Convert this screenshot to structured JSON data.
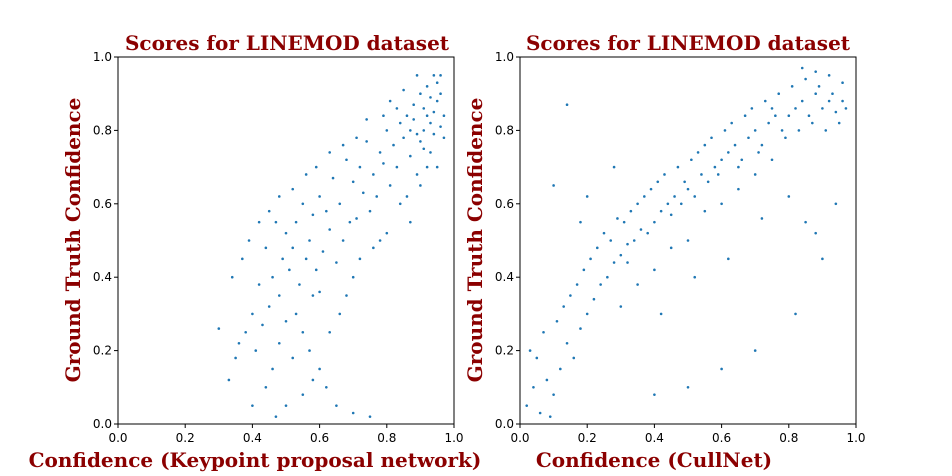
{
  "colors": {
    "point": "#1f77b4",
    "label": "#8b0000"
  },
  "chart_data": [
    {
      "type": "scatter",
      "title": "Scores for LINEMOD dataset",
      "xlabel": "Confidence (Keypoint proposal network)",
      "ylabel": "Ground Truth Confidence",
      "xlim": [
        0.0,
        1.0
      ],
      "ylim": [
        0.0,
        1.0
      ],
      "xticks": [
        "0.0",
        "0.2",
        "0.4",
        "0.6",
        "0.8",
        "1.0"
      ],
      "yticks": [
        "0.0",
        "0.2",
        "0.4",
        "0.6",
        "0.8",
        "1.0"
      ],
      "grid": false,
      "points": [
        [
          0.88,
          0.83
        ],
        [
          0.91,
          0.86
        ],
        [
          0.93,
          0.82
        ],
        [
          0.95,
          0.88
        ],
        [
          0.87,
          0.8
        ],
        [
          0.9,
          0.9
        ],
        [
          0.94,
          0.85
        ],
        [
          0.89,
          0.79
        ],
        [
          0.92,
          0.92
        ],
        [
          0.86,
          0.84
        ],
        [
          0.96,
          0.81
        ],
        [
          0.85,
          0.78
        ],
        [
          0.91,
          0.75
        ],
        [
          0.93,
          0.89
        ],
        [
          0.88,
          0.87
        ],
        [
          0.95,
          0.93
        ],
        [
          0.84,
          0.82
        ],
        [
          0.9,
          0.77
        ],
        [
          0.92,
          0.84
        ],
        [
          0.94,
          0.79
        ],
        [
          0.82,
          0.76
        ],
        [
          0.87,
          0.73
        ],
        [
          0.8,
          0.8
        ],
        [
          0.83,
          0.86
        ],
        [
          0.79,
          0.71
        ],
        [
          0.89,
          0.68
        ],
        [
          0.93,
          0.74
        ],
        [
          0.96,
          0.9
        ],
        [
          0.85,
          0.91
        ],
        [
          0.91,
          0.8
        ],
        [
          0.78,
          0.74
        ],
        [
          0.76,
          0.68
        ],
        [
          0.81,
          0.65
        ],
        [
          0.74,
          0.77
        ],
        [
          0.72,
          0.7
        ],
        [
          0.77,
          0.62
        ],
        [
          0.7,
          0.66
        ],
        [
          0.75,
          0.58
        ],
        [
          0.68,
          0.72
        ],
        [
          0.73,
          0.63
        ],
        [
          0.66,
          0.6
        ],
        [
          0.64,
          0.67
        ],
        [
          0.69,
          0.55
        ],
        [
          0.62,
          0.58
        ],
        [
          0.67,
          0.5
        ],
        [
          0.6,
          0.62
        ],
        [
          0.63,
          0.53
        ],
        [
          0.58,
          0.57
        ],
        [
          0.61,
          0.47
        ],
        [
          0.65,
          0.44
        ],
        [
          0.57,
          0.5
        ],
        [
          0.55,
          0.6
        ],
        [
          0.59,
          0.42
        ],
        [
          0.53,
          0.55
        ],
        [
          0.56,
          0.45
        ],
        [
          0.52,
          0.48
        ],
        [
          0.54,
          0.38
        ],
        [
          0.5,
          0.52
        ],
        [
          0.58,
          0.35
        ],
        [
          0.51,
          0.42
        ],
        [
          0.49,
          0.45
        ],
        [
          0.47,
          0.55
        ],
        [
          0.53,
          0.3
        ],
        [
          0.48,
          0.35
        ],
        [
          0.46,
          0.4
        ],
        [
          0.55,
          0.25
        ],
        [
          0.44,
          0.48
        ],
        [
          0.5,
          0.28
        ],
        [
          0.45,
          0.32
        ],
        [
          0.57,
          0.2
        ],
        [
          0.42,
          0.38
        ],
        [
          0.6,
          0.15
        ],
        [
          0.48,
          0.22
        ],
        [
          0.43,
          0.27
        ],
        [
          0.52,
          0.18
        ],
        [
          0.4,
          0.3
        ],
        [
          0.62,
          0.1
        ],
        [
          0.46,
          0.15
        ],
        [
          0.38,
          0.25
        ],
        [
          0.55,
          0.08
        ],
        [
          0.41,
          0.2
        ],
        [
          0.65,
          0.05
        ],
        [
          0.36,
          0.22
        ],
        [
          0.58,
          0.12
        ],
        [
          0.44,
          0.1
        ],
        [
          0.7,
          0.03
        ],
        [
          0.5,
          0.05
        ],
        [
          0.35,
          0.18
        ],
        [
          0.47,
          0.02
        ],
        [
          0.75,
          0.02
        ],
        [
          0.3,
          0.26
        ],
        [
          0.33,
          0.12
        ],
        [
          0.4,
          0.05
        ],
        [
          0.63,
          0.25
        ],
        [
          0.68,
          0.35
        ],
        [
          0.72,
          0.45
        ],
        [
          0.8,
          0.52
        ],
        [
          0.84,
          0.6
        ],
        [
          0.9,
          0.65
        ],
        [
          0.95,
          0.7
        ],
        [
          0.87,
          0.55
        ],
        [
          0.78,
          0.5
        ],
        [
          0.7,
          0.4
        ],
        [
          0.66,
          0.3
        ],
        [
          0.6,
          0.36
        ],
        [
          0.71,
          0.56
        ],
        [
          0.76,
          0.48
        ],
        [
          0.83,
          0.7
        ],
        [
          0.86,
          0.62
        ],
        [
          0.92,
          0.7
        ],
        [
          0.81,
          0.88
        ],
        [
          0.79,
          0.84
        ],
        [
          0.74,
          0.83
        ],
        [
          0.71,
          0.78
        ],
        [
          0.67,
          0.76
        ],
        [
          0.63,
          0.74
        ],
        [
          0.59,
          0.7
        ],
        [
          0.56,
          0.68
        ],
        [
          0.52,
          0.64
        ],
        [
          0.48,
          0.62
        ],
        [
          0.45,
          0.58
        ],
        [
          0.42,
          0.55
        ],
        [
          0.39,
          0.5
        ],
        [
          0.37,
          0.45
        ],
        [
          0.34,
          0.4
        ],
        [
          0.97,
          0.84
        ],
        [
          0.97,
          0.78
        ],
        [
          0.96,
          0.95
        ],
        [
          0.94,
          0.95
        ],
        [
          0.89,
          0.95
        ]
      ]
    },
    {
      "type": "scatter",
      "title": "Scores for LINEMOD dataset",
      "xlabel": "Confidence (CullNet)",
      "ylabel": "Ground Truth Confidence",
      "xlim": [
        0.0,
        1.0
      ],
      "ylim": [
        0.0,
        1.0
      ],
      "xticks": [
        "0.0",
        "0.2",
        "0.4",
        "0.6",
        "0.8",
        "1.0"
      ],
      "yticks": [
        "0.0",
        "0.2",
        "0.4",
        "0.6",
        "0.8",
        "1.0"
      ],
      "grid": false,
      "points": [
        [
          0.02,
          0.05
        ],
        [
          0.04,
          0.1
        ],
        [
          0.06,
          0.03
        ],
        [
          0.08,
          0.12
        ],
        [
          0.05,
          0.18
        ],
        [
          0.1,
          0.08
        ],
        [
          0.03,
          0.2
        ],
        [
          0.07,
          0.25
        ],
        [
          0.12,
          0.15
        ],
        [
          0.09,
          0.02
        ],
        [
          0.14,
          0.22
        ],
        [
          0.11,
          0.28
        ],
        [
          0.16,
          0.18
        ],
        [
          0.13,
          0.32
        ],
        [
          0.18,
          0.26
        ],
        [
          0.15,
          0.35
        ],
        [
          0.2,
          0.3
        ],
        [
          0.17,
          0.38
        ],
        [
          0.22,
          0.34
        ],
        [
          0.19,
          0.42
        ],
        [
          0.24,
          0.38
        ],
        [
          0.21,
          0.45
        ],
        [
          0.26,
          0.4
        ],
        [
          0.23,
          0.48
        ],
        [
          0.28,
          0.44
        ],
        [
          0.25,
          0.52
        ],
        [
          0.3,
          0.46
        ],
        [
          0.27,
          0.5
        ],
        [
          0.32,
          0.49
        ],
        [
          0.29,
          0.56
        ],
        [
          0.34,
          0.5
        ],
        [
          0.31,
          0.55
        ],
        [
          0.36,
          0.53
        ],
        [
          0.33,
          0.58
        ],
        [
          0.38,
          0.52
        ],
        [
          0.35,
          0.6
        ],
        [
          0.4,
          0.55
        ],
        [
          0.37,
          0.62
        ],
        [
          0.42,
          0.58
        ],
        [
          0.39,
          0.64
        ],
        [
          0.44,
          0.6
        ],
        [
          0.41,
          0.66
        ],
        [
          0.46,
          0.62
        ],
        [
          0.43,
          0.68
        ],
        [
          0.48,
          0.6
        ],
        [
          0.45,
          0.57
        ],
        [
          0.5,
          0.64
        ],
        [
          0.47,
          0.7
        ],
        [
          0.52,
          0.62
        ],
        [
          0.49,
          0.66
        ],
        [
          0.54,
          0.68
        ],
        [
          0.51,
          0.72
        ],
        [
          0.56,
          0.66
        ],
        [
          0.53,
          0.74
        ],
        [
          0.58,
          0.7
        ],
        [
          0.55,
          0.76
        ],
        [
          0.6,
          0.72
        ],
        [
          0.57,
          0.78
        ],
        [
          0.62,
          0.74
        ],
        [
          0.59,
          0.68
        ],
        [
          0.64,
          0.76
        ],
        [
          0.61,
          0.8
        ],
        [
          0.66,
          0.72
        ],
        [
          0.63,
          0.82
        ],
        [
          0.68,
          0.78
        ],
        [
          0.65,
          0.7
        ],
        [
          0.7,
          0.8
        ],
        [
          0.67,
          0.84
        ],
        [
          0.72,
          0.76
        ],
        [
          0.69,
          0.86
        ],
        [
          0.74,
          0.82
        ],
        [
          0.71,
          0.74
        ],
        [
          0.76,
          0.84
        ],
        [
          0.73,
          0.88
        ],
        [
          0.78,
          0.8
        ],
        [
          0.75,
          0.86
        ],
        [
          0.8,
          0.84
        ],
        [
          0.77,
          0.9
        ],
        [
          0.82,
          0.86
        ],
        [
          0.79,
          0.78
        ],
        [
          0.84,
          0.88
        ],
        [
          0.81,
          0.92
        ],
        [
          0.86,
          0.84
        ],
        [
          0.83,
          0.8
        ],
        [
          0.88,
          0.9
        ],
        [
          0.85,
          0.94
        ],
        [
          0.9,
          0.86
        ],
        [
          0.87,
          0.82
        ],
        [
          0.92,
          0.88
        ],
        [
          0.89,
          0.92
        ],
        [
          0.94,
          0.85
        ],
        [
          0.91,
          0.8
        ],
        [
          0.96,
          0.88
        ],
        [
          0.93,
          0.9
        ],
        [
          0.95,
          0.82
        ],
        [
          0.97,
          0.86
        ],
        [
          0.92,
          0.95
        ],
        [
          0.88,
          0.96
        ],
        [
          0.84,
          0.97
        ],
        [
          0.96,
          0.93
        ],
        [
          0.3,
          0.32
        ],
        [
          0.35,
          0.38
        ],
        [
          0.4,
          0.42
        ],
        [
          0.45,
          0.48
        ],
        [
          0.5,
          0.5
        ],
        [
          0.55,
          0.58
        ],
        [
          0.6,
          0.6
        ],
        [
          0.65,
          0.64
        ],
        [
          0.7,
          0.68
        ],
        [
          0.75,
          0.72
        ],
        [
          0.18,
          0.55
        ],
        [
          0.1,
          0.65
        ],
        [
          0.28,
          0.7
        ],
        [
          0.14,
          0.87
        ],
        [
          0.2,
          0.62
        ],
        [
          0.32,
          0.44
        ],
        [
          0.42,
          0.3
        ],
        [
          0.52,
          0.4
        ],
        [
          0.62,
          0.45
        ],
        [
          0.72,
          0.56
        ],
        [
          0.8,
          0.62
        ],
        [
          0.85,
          0.55
        ],
        [
          0.88,
          0.52
        ],
        [
          0.9,
          0.45
        ],
        [
          0.94,
          0.6
        ],
        [
          0.82,
          0.3
        ],
        [
          0.7,
          0.2
        ],
        [
          0.6,
          0.15
        ],
        [
          0.5,
          0.1
        ],
        [
          0.4,
          0.08
        ]
      ]
    }
  ]
}
